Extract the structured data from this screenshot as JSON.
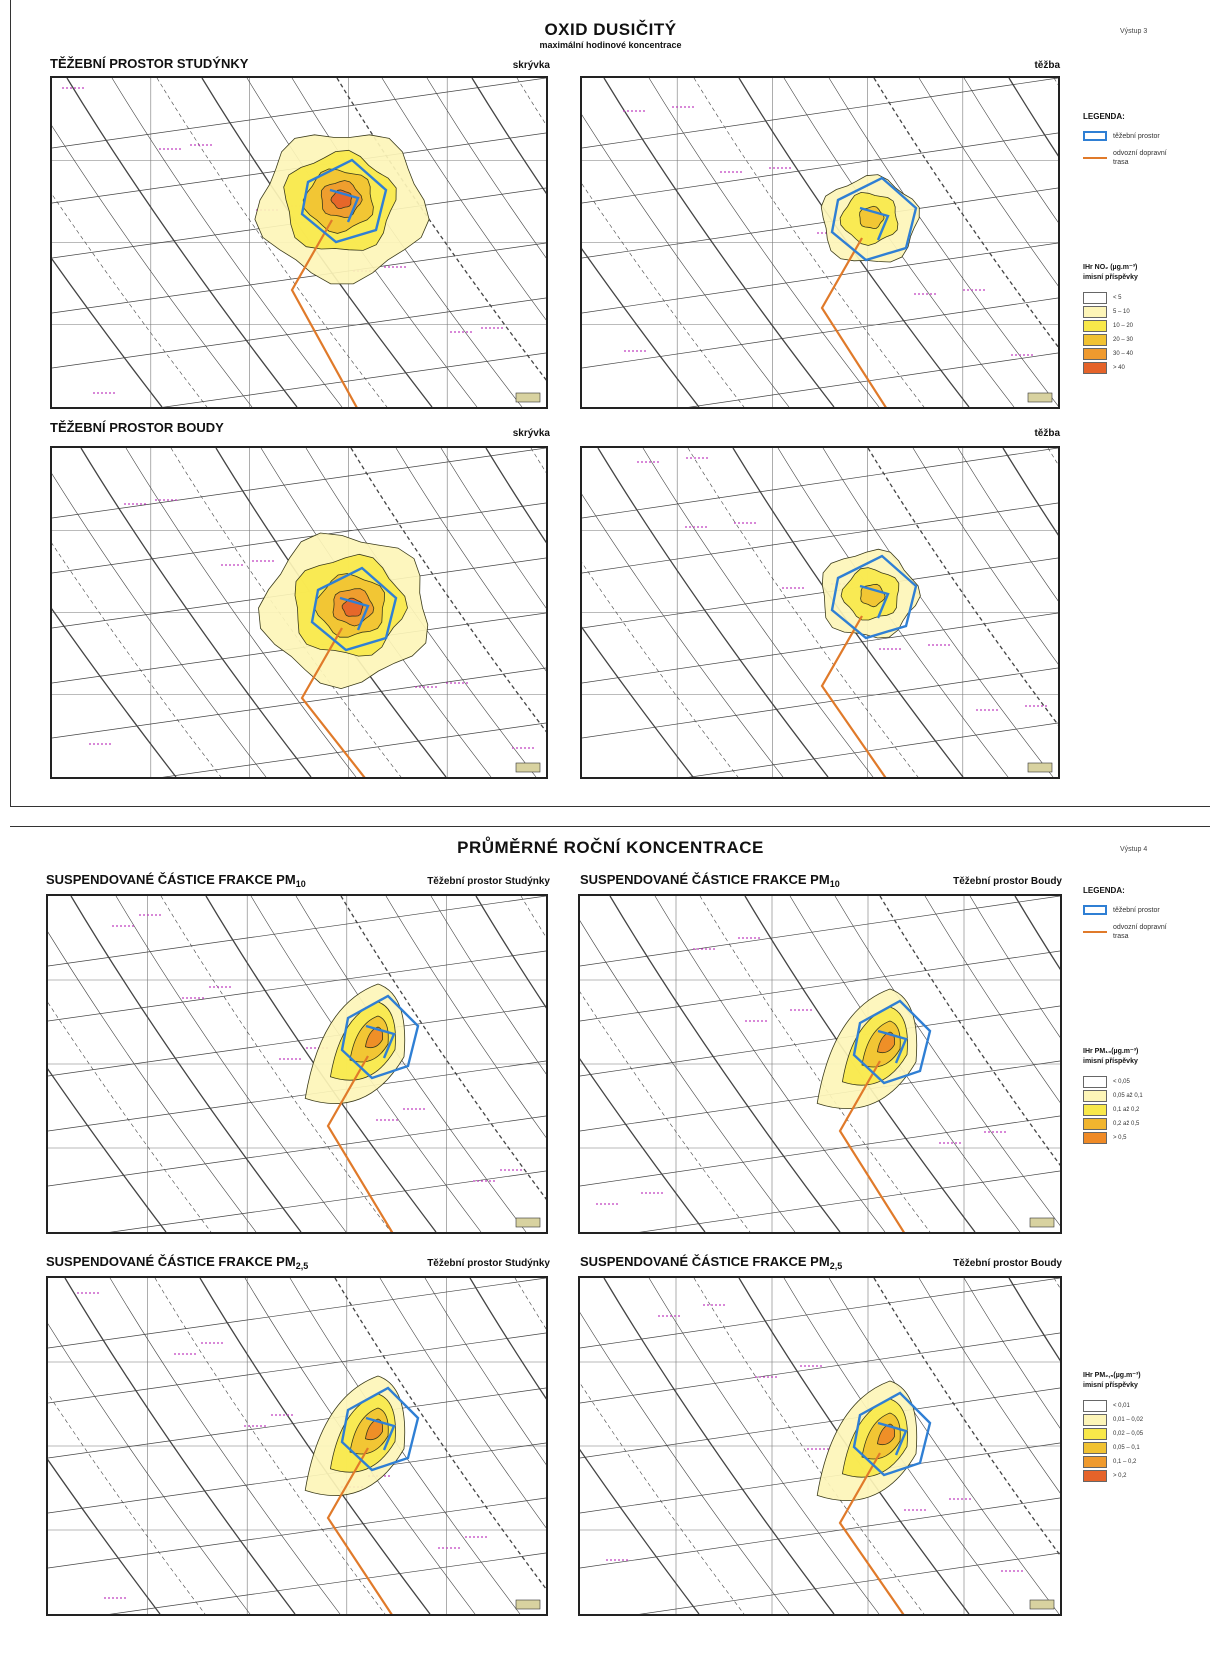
{
  "sheet1": {
    "title": "OXID DUSIČITÝ",
    "subtitle": "maximální hodinové koncentrace",
    "vystup": "Výstup 3",
    "sections": [
      {
        "title": "TĚŽEBNÍ PROSTOR STUDÝNKY",
        "left_label": "skrývka",
        "right_label": "těžba"
      },
      {
        "title": "TĚŽEBNÍ PROSTOR BOUDY",
        "left_label": "skrývka",
        "right_label": "těžba"
      }
    ],
    "legend": {
      "title": "LEGENDA:",
      "items": [
        "těžební prostor",
        "odvozní dopravní trasa"
      ],
      "scale_title_1": "IHr NO₂ (µg.m⁻³)",
      "scale_title_2": "imisní příspěvky",
      "classes": [
        {
          "label": "< 5",
          "color": "#ffffff"
        },
        {
          "label": "5 – 10",
          "color": "#fdf5b8"
        },
        {
          "label": "10 – 20",
          "color": "#f8e84a"
        },
        {
          "label": "20 – 30",
          "color": "#f1c232"
        },
        {
          "label": "30 – 40",
          "color": "#ef9a2e"
        },
        {
          "label": "> 40",
          "color": "#e5632a"
        }
      ]
    }
  },
  "sheet2": {
    "title": "PRŮMĚRNÉ ROČNÍ KONCENTRACE",
    "vystup": "Výstup 4",
    "panels": [
      {
        "title_main": "SUSPENDOVANÉ ČÁSTICE FRAKCE PM",
        "title_sub": "10",
        "label": "Těžební prostor Studýnky"
      },
      {
        "title_main": "SUSPENDOVANÉ ČÁSTICE FRAKCE PM",
        "title_sub": "10",
        "label": "Těžební prostor Boudy"
      },
      {
        "title_main": "SUSPENDOVANÉ ČÁSTICE FRAKCE PM",
        "title_sub": "2,5",
        "label": "Těžební prostor Studýnky"
      },
      {
        "title_main": "SUSPENDOVANÉ ČÁSTICE FRAKCE PM",
        "title_sub": "2,5",
        "label": "Těžební prostor Boudy"
      }
    ],
    "legend": {
      "title": "LEGENDA:",
      "items": [
        "těžební prostor",
        "odvozní dopravní trasa"
      ],
      "pm10_scale_title_1": "IHr PM₁₀(µg.m⁻³)",
      "pm10_scale_title_2": "imisní příspěvky",
      "pm10_classes": [
        {
          "label": "< 0,05",
          "color": "#ffffff"
        },
        {
          "label": "0,05 až 0,1",
          "color": "#fdf5b8"
        },
        {
          "label": "0,1 až 0,2",
          "color": "#f8e84a"
        },
        {
          "label": "0,2 až 0,5",
          "color": "#f1b52e"
        },
        {
          "label": "> 0,5",
          "color": "#ef8a26"
        }
      ],
      "pm25_scale_title_1": "IHr PM₂,₅(µg.m⁻³)",
      "pm25_scale_title_2": "imisní příspěvky",
      "pm25_classes": [
        {
          "label": "< 0,01",
          "color": "#ffffff"
        },
        {
          "label": "0,01 – 0,02",
          "color": "#fdf5b8"
        },
        {
          "label": "0,02 – 0,05",
          "color": "#f8e84a"
        },
        {
          "label": "0,05 – 0,1",
          "color": "#f1c232"
        },
        {
          "label": "0,1 – 0,2",
          "color": "#ef9a2e"
        },
        {
          "label": "> 0,2",
          "color": "#e5632a"
        }
      ]
    }
  },
  "colors": {
    "mining_area": "#2f7fd4",
    "haul_route": "#e07a2a",
    "contour": "#3a3a1a",
    "map_lines": "#444444",
    "grid": "#777777",
    "village_labels": "#c040c0"
  }
}
